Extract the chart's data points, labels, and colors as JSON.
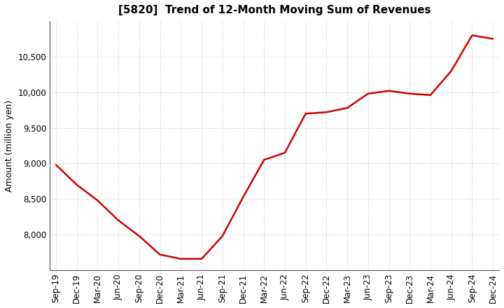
{
  "title": "[5820]  Trend of 12-Month Moving Sum of Revenues",
  "ylabel": "Amount (million yen)",
  "line_color": "#cc0000",
  "background_color": "#ffffff",
  "plot_bg_color": "#ffffff",
  "x_labels": [
    "Sep-19",
    "Dec-19",
    "Mar-20",
    "Jun-20",
    "Sep-20",
    "Dec-20",
    "Mar-21",
    "Jun-21",
    "Sep-21",
    "Dec-21",
    "Mar-22",
    "Jun-22",
    "Sep-22",
    "Dec-22",
    "Mar-23",
    "Jun-23",
    "Sep-23",
    "Dec-23",
    "Mar-24",
    "Jun-24",
    "Sep-24",
    "Dec-24"
  ],
  "x_values": [
    0,
    1,
    2,
    3,
    4,
    5,
    6,
    7,
    8,
    9,
    10,
    11,
    12,
    13,
    14,
    15,
    16,
    17,
    18,
    19,
    20,
    21
  ],
  "y_values": [
    8980,
    8700,
    8480,
    8200,
    7980,
    7720,
    7660,
    7660,
    7980,
    8530,
    9050,
    9150,
    9700,
    9720,
    9780,
    9980,
    10020,
    9980,
    9960,
    10300,
    10800,
    10750
  ],
  "ylim": [
    7500,
    11000
  ],
  "yticks": [
    8000,
    8500,
    9000,
    9500,
    10000,
    10500
  ],
  "grid_color": "#999999",
  "title_fontsize": 11,
  "axis_fontsize": 9,
  "tick_fontsize": 8.5
}
